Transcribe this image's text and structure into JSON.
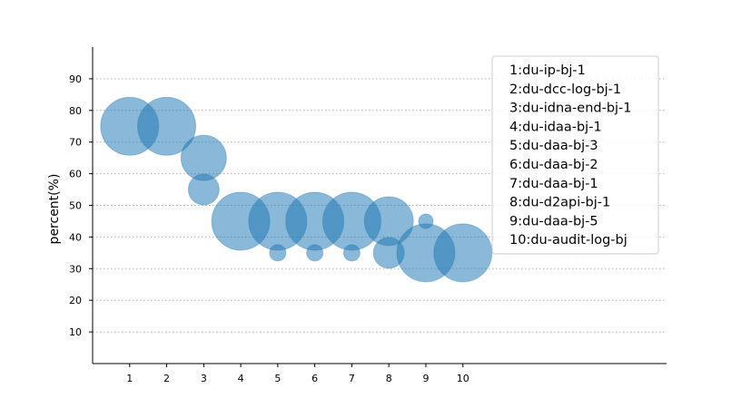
{
  "chart_data": {
    "type": "scatter",
    "title": "",
    "xlabel": "",
    "ylabel": "percent(%)",
    "xlim": [
      0,
      15.5
    ],
    "ylim": [
      0,
      100
    ],
    "xticks": [
      1,
      2,
      3,
      4,
      5,
      6,
      7,
      8,
      9,
      10
    ],
    "yticks": [
      10,
      20,
      30,
      40,
      50,
      60,
      70,
      80,
      90
    ],
    "grid": "horizontal-dotted",
    "legend_position": "top-right",
    "legend": [
      "1:du-ip-bj-1",
      "2:du-dcc-log-bj-1",
      "3:du-idna-end-bj-1",
      "4:du-idaa-bj-1",
      "5:du-daa-bj-3",
      "6:du-daa-bj-2",
      "7:du-daa-bj-1",
      "8:du-d2api-bj-1",
      "9:du-daa-bj-5",
      "10:du-audit-log-bj"
    ],
    "color": "#1f77b4",
    "points": [
      {
        "x": 1,
        "y": 75,
        "size": "large"
      },
      {
        "x": 2,
        "y": 75,
        "size": "large"
      },
      {
        "x": 3,
        "y": 65,
        "size": "medium"
      },
      {
        "x": 3,
        "y": 55,
        "size": "small"
      },
      {
        "x": 4,
        "y": 45,
        "size": "large"
      },
      {
        "x": 5,
        "y": 45,
        "size": "large"
      },
      {
        "x": 5,
        "y": 35,
        "size": "tiny"
      },
      {
        "x": 6,
        "y": 45,
        "size": "large"
      },
      {
        "x": 6,
        "y": 35,
        "size": "tiny"
      },
      {
        "x": 7,
        "y": 45,
        "size": "large"
      },
      {
        "x": 7,
        "y": 35,
        "size": "tiny"
      },
      {
        "x": 8,
        "y": 45,
        "size": "medium-large"
      },
      {
        "x": 8,
        "y": 35,
        "size": "small"
      },
      {
        "x": 9,
        "y": 45,
        "size": "tiny-small"
      },
      {
        "x": 9,
        "y": 35,
        "size": "large"
      },
      {
        "x": 10,
        "y": 35,
        "size": "large"
      }
    ]
  }
}
